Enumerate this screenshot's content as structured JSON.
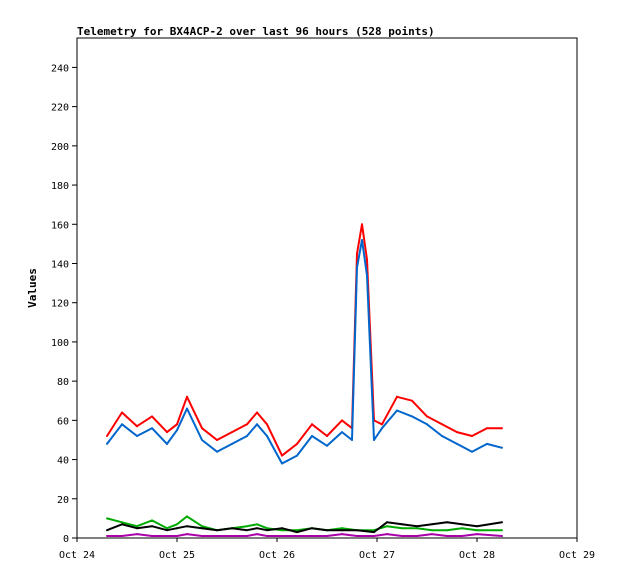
{
  "chart_data": {
    "type": "line",
    "title": "Telemetry for BX4ACP-2 over last 96 hours (528 points)",
    "xlabel": "",
    "ylabel": "Values",
    "x_ticks": [
      "Oct 24",
      "Oct 25",
      "Oct 26",
      "Oct 27",
      "Oct 28",
      "Oct 29"
    ],
    "y_ticks": [
      0,
      20,
      40,
      60,
      80,
      100,
      120,
      140,
      160,
      180,
      200,
      220,
      240
    ],
    "ylim": [
      0,
      255
    ],
    "xlim_days": [
      24,
      29
    ],
    "grid": false,
    "legend": "none",
    "series": [
      {
        "color": "#ff0000",
        "x": [
          24.3,
          24.45,
          24.6,
          24.75,
          24.9,
          25.0,
          25.1,
          25.25,
          25.4,
          25.55,
          25.7,
          25.8,
          25.9,
          26.05,
          26.2,
          26.35,
          26.5,
          26.65,
          26.75,
          26.8,
          26.85,
          26.9,
          26.97,
          27.05,
          27.2,
          27.35,
          27.5,
          27.65,
          27.8,
          27.95,
          28.1,
          28.25
        ],
        "values": [
          52,
          64,
          57,
          62,
          54,
          58,
          72,
          56,
          50,
          54,
          58,
          64,
          58,
          42,
          48,
          58,
          52,
          60,
          56,
          145,
          160,
          142,
          60,
          58,
          72,
          70,
          62,
          58,
          54,
          52,
          56,
          56
        ]
      },
      {
        "color": "#0066cc",
        "x": [
          24.3,
          24.45,
          24.6,
          24.75,
          24.9,
          25.0,
          25.1,
          25.25,
          25.4,
          25.55,
          25.7,
          25.8,
          25.9,
          26.05,
          26.2,
          26.35,
          26.5,
          26.65,
          26.75,
          26.8,
          26.85,
          26.9,
          26.97,
          27.05,
          27.2,
          27.35,
          27.5,
          27.65,
          27.8,
          27.95,
          28.1,
          28.25
        ],
        "values": [
          48,
          58,
          52,
          56,
          48,
          55,
          66,
          50,
          44,
          48,
          52,
          58,
          52,
          38,
          42,
          52,
          47,
          54,
          50,
          138,
          152,
          134,
          50,
          56,
          65,
          62,
          58,
          52,
          48,
          44,
          48,
          46
        ]
      },
      {
        "color": "#00aa00",
        "x": [
          24.3,
          24.45,
          24.6,
          24.75,
          24.9,
          25.0,
          25.1,
          25.25,
          25.4,
          25.55,
          25.7,
          25.8,
          25.9,
          26.05,
          26.2,
          26.35,
          26.5,
          26.65,
          26.8,
          26.97,
          27.1,
          27.25,
          27.4,
          27.55,
          27.7,
          27.85,
          28.0,
          28.25
        ],
        "values": [
          10,
          8,
          6,
          9,
          5,
          7,
          11,
          6,
          4,
          5,
          6,
          7,
          5,
          4,
          4,
          5,
          4,
          5,
          4,
          4,
          6,
          5,
          5,
          4,
          4,
          5,
          4,
          4
        ]
      },
      {
        "color": "#000000",
        "x": [
          24.3,
          24.45,
          24.6,
          24.75,
          24.9,
          25.0,
          25.1,
          25.25,
          25.4,
          25.55,
          25.7,
          25.8,
          25.9,
          26.05,
          26.2,
          26.35,
          26.5,
          26.65,
          26.8,
          26.97,
          27.1,
          27.25,
          27.4,
          27.55,
          27.7,
          27.85,
          28.0,
          28.25
        ],
        "values": [
          4,
          7,
          5,
          6,
          4,
          5,
          6,
          5,
          4,
          5,
          4,
          5,
          4,
          5,
          3,
          5,
          4,
          4,
          4,
          3,
          8,
          7,
          6,
          7,
          8,
          7,
          6,
          8
        ]
      },
      {
        "color": "#aa00aa",
        "x": [
          24.3,
          24.45,
          24.6,
          24.75,
          24.9,
          25.0,
          25.1,
          25.25,
          25.4,
          25.55,
          25.7,
          25.8,
          25.9,
          26.05,
          26.2,
          26.35,
          26.5,
          26.65,
          26.8,
          26.97,
          27.1,
          27.25,
          27.4,
          27.55,
          27.7,
          27.85,
          28.0,
          28.25
        ],
        "values": [
          1,
          1,
          2,
          1,
          1,
          1,
          2,
          1,
          1,
          1,
          1,
          2,
          1,
          1,
          1,
          1,
          1,
          2,
          1,
          1,
          2,
          1,
          1,
          2,
          1,
          1,
          2,
          1
        ]
      }
    ]
  }
}
